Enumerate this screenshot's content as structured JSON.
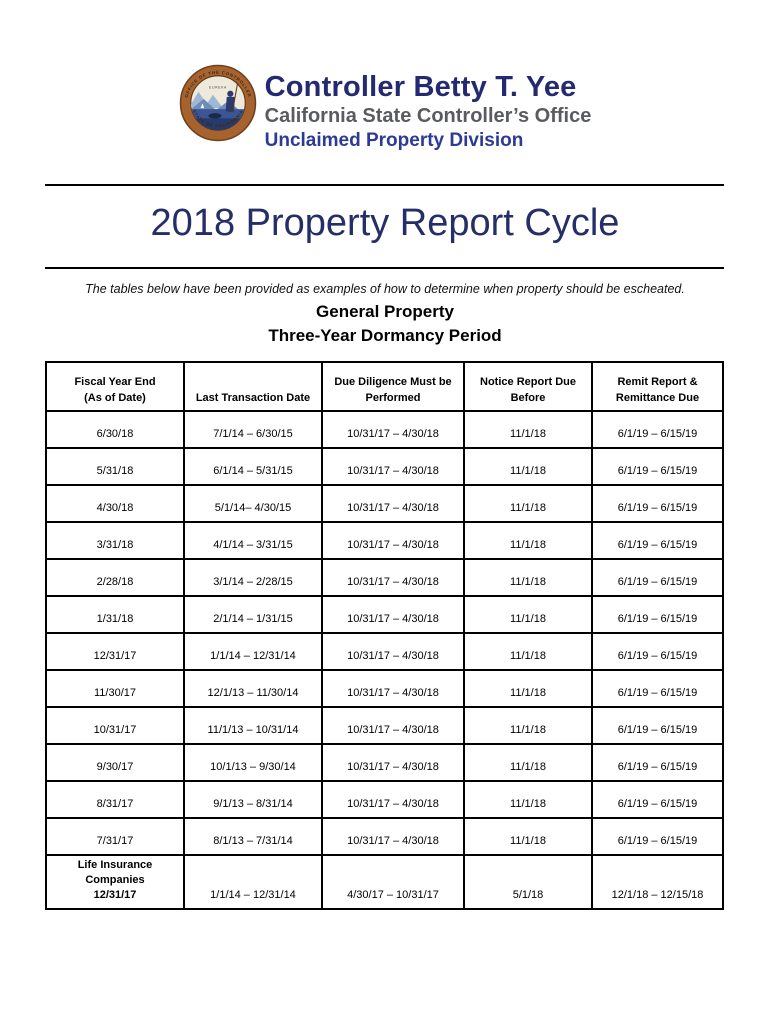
{
  "header": {
    "name": "Controller Betty T. Yee",
    "office": "California State Controller’s Office",
    "division": "Unclaimed Property Division"
  },
  "seal": {
    "ring_top": "OFFICE OF THE CONTROLLER",
    "ring_bottom": "STATE OF CALIFORNIA",
    "motto": "EUREKA"
  },
  "title": "2018 Property Report Cycle",
  "note": "The tables below have been provided as examples of how to determine when property should be escheated.",
  "section": {
    "heading_line1": "General Property",
    "heading_line2": "Three-Year Dormancy Period"
  },
  "table": {
    "columns": [
      "Fiscal Year End\n(As of Date)",
      "Last Transaction Date",
      "Due Diligence  Must be\nPerformed",
      "Notice Report Due\nBefore",
      "Remit Report &\nRemittance Due"
    ],
    "rows": [
      {
        "cells": [
          "6/30/18",
          "7/1/14 – 6/30/15",
          "10/31/17 – 4/30/18",
          "11/1/18",
          "6/1/19 – 6/15/19"
        ]
      },
      {
        "cells": [
          "5/31/18",
          "6/1/14 – 5/31/15",
          "10/31/17 – 4/30/18",
          "11/1/18",
          "6/1/19 – 6/15/19"
        ]
      },
      {
        "cells": [
          "4/30/18",
          "5/1/14– 4/30/15",
          "10/31/17 – 4/30/18",
          "11/1/18",
          "6/1/19 – 6/15/19"
        ]
      },
      {
        "cells": [
          "3/31/18",
          "4/1/14 – 3/31/15",
          "10/31/17 – 4/30/18",
          "11/1/18",
          "6/1/19 – 6/15/19"
        ]
      },
      {
        "cells": [
          "2/28/18",
          "3/1/14 – 2/28/15",
          "10/31/17 – 4/30/18",
          "11/1/18",
          "6/1/19 – 6/15/19"
        ]
      },
      {
        "cells": [
          "1/31/18",
          "2/1/14 – 1/31/15",
          "10/31/17 – 4/30/18",
          "11/1/18",
          "6/1/19 – 6/15/19"
        ]
      },
      {
        "cells": [
          "12/31/17",
          "1/1/14 – 12/31/14",
          "10/31/17 – 4/30/18",
          "11/1/18",
          "6/1/19 – 6/15/19"
        ]
      },
      {
        "cells": [
          "11/30/17",
          "12/1/13 – 11/30/14",
          "10/31/17 – 4/30/18",
          "11/1/18",
          "6/1/19 – 6/15/19"
        ]
      },
      {
        "cells": [
          "10/31/17",
          "11/1/13 – 10/31/14",
          "10/31/17 – 4/30/18",
          "11/1/18",
          "6/1/19 – 6/15/19"
        ]
      },
      {
        "cells": [
          "9/30/17",
          "10/1/13 – 9/30/14",
          "10/31/17 – 4/30/18",
          "11/1/18",
          "6/1/19 – 6/15/19"
        ]
      },
      {
        "cells": [
          "8/31/17",
          "9/1/13 – 8/31/14",
          "10/31/17 – 4/30/18",
          "11/1/18",
          "6/1/19 – 6/15/19"
        ]
      },
      {
        "cells": [
          "7/31/17",
          "8/1/13 – 7/31/14",
          "10/31/17 – 4/30/18",
          "11/1/18",
          "6/1/19 – 6/15/19"
        ]
      },
      {
        "cells": [
          "Life Insurance\nCompanies\n12/31/17",
          "1/1/14 – 12/31/14",
          "4/30/17 – 10/31/17",
          "5/1/18",
          "12/1/18 – 12/15/18"
        ],
        "bold_first_cell": true,
        "tall": true
      }
    ]
  },
  "colors": {
    "name_navy": "#232a70",
    "office_gray": "#595b5e",
    "division_blue": "#2d3a96",
    "title_navy": "#262e68",
    "rule_black": "#000000",
    "seal_ring_brown": "#a6632e",
    "seal_mountain_blue": "#8aa6cc",
    "seal_water_navy": "#31457f"
  }
}
